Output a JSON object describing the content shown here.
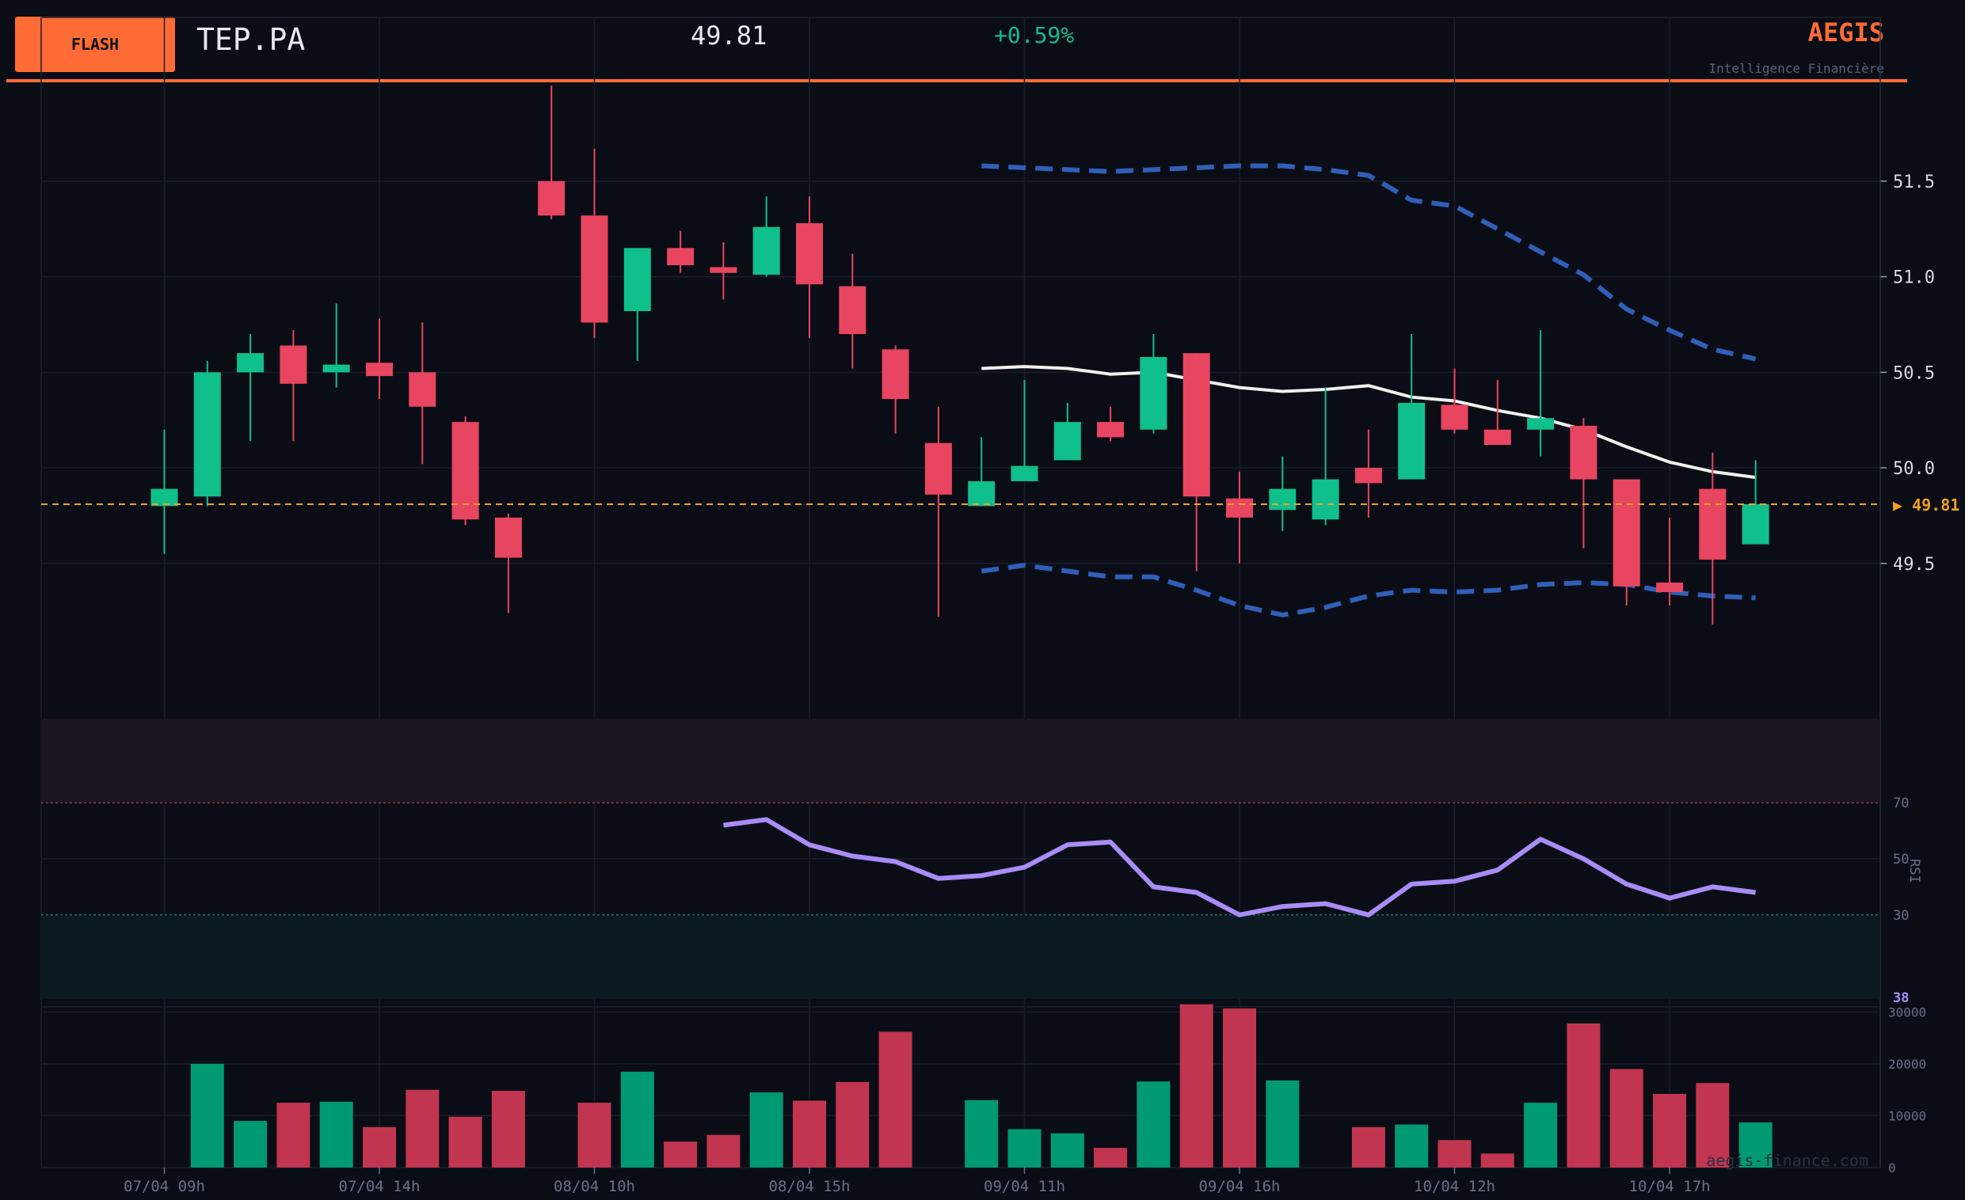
{
  "header": {
    "badge": "FLASH",
    "ticker": "TEP.PA",
    "price": "49.81",
    "change": "+0.59%",
    "brand": "AEGIS",
    "tagline": "Intelligence Financière",
    "watermark": "aegis-finance.com"
  },
  "colors": {
    "background": "#0b0d16",
    "up": "#0fbf8c",
    "down": "#e84560",
    "accent": "#ff6b35",
    "last_price": "#f0a020",
    "bollinger": "#2f5fb8",
    "sma": "#f0f0f0",
    "rsi": "#a98cf6"
  },
  "chart_data": [
    {
      "type": "candlestick",
      "title": "",
      "ylim": [
        48.7,
        52.05
      ],
      "y_ticks": [
        "49.5",
        "50.0",
        "50.5",
        "51.0",
        "51.5"
      ],
      "x_labels": [
        "07/04 09h",
        "07/04 14h",
        "08/04 10h",
        "08/04 15h",
        "09/04 11h",
        "09/04 16h",
        "10/04 12h",
        "10/04 17h"
      ],
      "x_label_index": [
        0,
        5,
        10,
        15,
        20,
        25,
        30,
        35
      ],
      "last_price": 49.81,
      "last_price_label": "▶ 49.81",
      "candles": [
        {
          "o": 49.8,
          "h": 50.2,
          "l": 49.55,
          "c": 49.89
        },
        {
          "o": 49.85,
          "h": 50.56,
          "l": 49.8,
          "c": 50.5
        },
        {
          "o": 50.5,
          "h": 50.7,
          "l": 50.14,
          "c": 50.6
        },
        {
          "o": 50.64,
          "h": 50.72,
          "l": 50.14,
          "c": 50.44
        },
        {
          "o": 50.5,
          "h": 50.86,
          "l": 50.42,
          "c": 50.54
        },
        {
          "o": 50.55,
          "h": 50.78,
          "l": 50.36,
          "c": 50.48
        },
        {
          "o": 50.5,
          "h": 50.76,
          "l": 50.02,
          "c": 50.32
        },
        {
          "o": 50.24,
          "h": 50.27,
          "l": 49.7,
          "c": 49.73
        },
        {
          "o": 49.74,
          "h": 49.76,
          "l": 49.24,
          "c": 49.53
        },
        {
          "o": 51.5,
          "h": 52.0,
          "l": 51.3,
          "c": 51.32
        },
        {
          "o": 51.32,
          "h": 51.67,
          "l": 50.68,
          "c": 50.76
        },
        {
          "o": 50.82,
          "h": 51.15,
          "l": 50.56,
          "c": 51.15
        },
        {
          "o": 51.15,
          "h": 51.24,
          "l": 51.02,
          "c": 51.06
        },
        {
          "o": 51.05,
          "h": 51.18,
          "l": 50.88,
          "c": 51.02
        },
        {
          "o": 51.01,
          "h": 51.42,
          "l": 51.0,
          "c": 51.26
        },
        {
          "o": 51.28,
          "h": 51.42,
          "l": 50.68,
          "c": 50.96
        },
        {
          "o": 50.95,
          "h": 51.12,
          "l": 50.52,
          "c": 50.7
        },
        {
          "o": 50.62,
          "h": 50.64,
          "l": 50.18,
          "c": 50.36
        },
        {
          "o": 50.13,
          "h": 50.32,
          "l": 49.22,
          "c": 49.86
        },
        {
          "o": 49.8,
          "h": 50.16,
          "l": 49.8,
          "c": 49.93
        },
        {
          "o": 49.93,
          "h": 50.46,
          "l": 49.93,
          "c": 50.01
        },
        {
          "o": 50.04,
          "h": 50.34,
          "l": 50.04,
          "c": 50.24
        },
        {
          "o": 50.24,
          "h": 50.32,
          "l": 50.14,
          "c": 50.16
        },
        {
          "o": 50.2,
          "h": 50.7,
          "l": 50.18,
          "c": 50.58
        },
        {
          "o": 50.6,
          "h": 50.6,
          "l": 49.46,
          "c": 49.85
        },
        {
          "o": 49.84,
          "h": 49.98,
          "l": 49.5,
          "c": 49.74
        },
        {
          "o": 49.78,
          "h": 50.06,
          "l": 49.67,
          "c": 49.89
        },
        {
          "o": 49.73,
          "h": 50.42,
          "l": 49.7,
          "c": 49.94
        },
        {
          "o": 50.0,
          "h": 50.2,
          "l": 49.74,
          "c": 49.92
        },
        {
          "o": 49.94,
          "h": 50.7,
          "l": 49.94,
          "c": 50.34
        },
        {
          "o": 50.33,
          "h": 50.52,
          "l": 50.18,
          "c": 50.2
        },
        {
          "o": 50.2,
          "h": 50.46,
          "l": 50.12,
          "c": 50.12
        },
        {
          "o": 50.2,
          "h": 50.72,
          "l": 50.06,
          "c": 50.26
        },
        {
          "o": 50.22,
          "h": 50.26,
          "l": 49.58,
          "c": 49.94
        },
        {
          "o": 49.94,
          "h": 49.94,
          "l": 49.28,
          "c": 49.38
        },
        {
          "o": 49.4,
          "h": 49.74,
          "l": 49.28,
          "c": 49.35
        },
        {
          "o": 49.89,
          "h": 50.08,
          "l": 49.18,
          "c": 49.52
        },
        {
          "o": 49.6,
          "h": 50.04,
          "l": 49.6,
          "c": 49.81
        }
      ],
      "bollinger_start_index": 19,
      "bollinger_upper": [
        51.58,
        51.57,
        51.56,
        51.55,
        51.56,
        51.57,
        51.58,
        51.58,
        51.56,
        51.53,
        51.4,
        51.37,
        51.25,
        51.13,
        51.01,
        50.83,
        50.72,
        50.62,
        50.57
      ],
      "sma": [
        50.52,
        50.53,
        50.52,
        50.49,
        50.5,
        50.46,
        50.42,
        50.4,
        50.41,
        50.43,
        50.37,
        50.35,
        50.3,
        50.26,
        50.2,
        50.11,
        50.03,
        49.98,
        49.95
      ],
      "bollinger_lower": [
        49.46,
        49.49,
        49.46,
        49.43,
        49.43,
        49.36,
        49.28,
        49.23,
        49.27,
        49.33,
        49.36,
        49.35,
        49.36,
        49.39,
        49.4,
        49.39,
        49.35,
        49.33,
        49.32
      ]
    },
    {
      "type": "line",
      "title": "",
      "ylabel": "RSI",
      "ylim": [
        0,
        100
      ],
      "y_ticks": [
        "30",
        "50",
        "70"
      ],
      "overbought": 70,
      "oversold": 30,
      "start_index": 13,
      "values": [
        62,
        64,
        55,
        51,
        49,
        43,
        44,
        47,
        55,
        56,
        40,
        38,
        30,
        33,
        34,
        30,
        41,
        42,
        46,
        57,
        50,
        41,
        36,
        40,
        38
      ],
      "last_value_label": "38"
    },
    {
      "type": "bar",
      "title": "",
      "ylim": [
        0,
        31000
      ],
      "y_ticks": [
        "0",
        "10000",
        "20000",
        "30000"
      ],
      "values": [
        null,
        20000,
        9000,
        12500,
        12700,
        7800,
        15000,
        9800,
        14800,
        null,
        12500,
        18500,
        5000,
        6300,
        14500,
        12900,
        16500,
        26200,
        null,
        13000,
        7400,
        6600,
        3800,
        16600,
        31500,
        30700,
        16800,
        null,
        7800,
        8300,
        5300,
        2700,
        12500,
        27800,
        19000,
        14200,
        16300,
        8700
      ]
    }
  ]
}
